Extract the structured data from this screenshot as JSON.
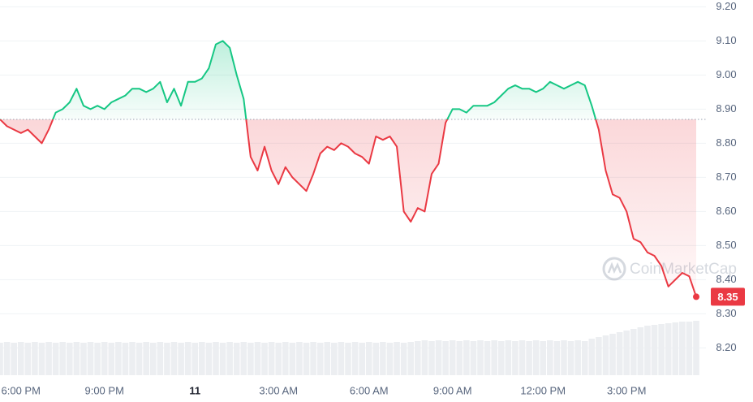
{
  "chart_data": {
    "type": "line",
    "watermark": "CoinMarketCap",
    "current_label": "8.35",
    "categories": [
      null,
      null,
      null,
      "6:00 PM",
      null,
      null,
      null,
      null,
      null,
      null,
      null,
      null,
      null,
      null,
      null,
      "9:00 PM",
      null,
      null,
      null,
      null,
      null,
      null,
      null,
      null,
      null,
      null,
      null,
      null,
      "11",
      null,
      null,
      null,
      null,
      null,
      null,
      null,
      null,
      null,
      null,
      null,
      "3:00 AM",
      null,
      null,
      null,
      null,
      null,
      null,
      null,
      null,
      null,
      null,
      null,
      null,
      "6:00 AM",
      null,
      null,
      null,
      null,
      null,
      null,
      null,
      null,
      null,
      null,
      null,
      "9:00 AM",
      null,
      null,
      null,
      null,
      null,
      null,
      null,
      null,
      null,
      null,
      null,
      null,
      "12:00 PM",
      null,
      null,
      null,
      null,
      null,
      null,
      null,
      null,
      null,
      null,
      null,
      "3:00 PM",
      null,
      null,
      null,
      null,
      null,
      null,
      null,
      null,
      null,
      null
    ],
    "values": [
      8.87,
      8.85,
      8.84,
      8.83,
      8.84,
      8.82,
      8.8,
      8.84,
      8.89,
      8.9,
      8.92,
      8.96,
      8.91,
      8.9,
      8.91,
      8.9,
      8.92,
      8.93,
      8.94,
      8.96,
      8.96,
      8.95,
      8.96,
      8.98,
      8.92,
      8.96,
      8.91,
      8.98,
      8.98,
      8.99,
      9.02,
      9.09,
      9.1,
      9.08,
      9.0,
      8.93,
      8.76,
      8.72,
      8.79,
      8.72,
      8.68,
      8.73,
      8.7,
      8.68,
      8.66,
      8.71,
      8.77,
      8.79,
      8.78,
      8.8,
      8.79,
      8.77,
      8.76,
      8.74,
      8.82,
      8.81,
      8.82,
      8.79,
      8.6,
      8.57,
      8.61,
      8.6,
      8.71,
      8.74,
      8.86,
      8.9,
      8.9,
      8.89,
      8.91,
      8.91,
      8.91,
      8.92,
      8.94,
      8.96,
      8.97,
      8.96,
      8.96,
      8.95,
      8.96,
      8.98,
      8.97,
      8.96,
      8.97,
      8.98,
      8.97,
      8.91,
      8.84,
      8.72,
      8.65,
      8.64,
      8.6,
      8.52,
      8.51,
      8.48,
      8.47,
      8.44,
      8.38,
      8.4,
      8.42,
      8.41,
      8.35
    ],
    "volume": [
      40,
      41,
      40,
      41,
      40,
      41,
      40,
      41,
      40,
      41,
      40,
      41,
      40,
      41,
      40,
      41,
      40,
      41,
      40,
      41,
      40,
      41,
      40,
      41,
      40,
      41,
      40,
      41,
      40,
      41,
      40,
      41,
      40,
      41,
      40,
      41,
      40,
      41,
      40,
      41,
      40,
      41,
      40,
      41,
      40,
      41,
      40,
      41,
      40,
      41,
      40,
      41,
      40,
      41,
      40,
      41,
      40,
      41,
      40,
      41,
      42,
      43,
      42,
      43,
      42,
      43,
      42,
      43,
      42,
      43,
      42,
      43,
      42,
      43,
      42,
      43,
      42,
      43,
      42,
      43,
      42,
      43,
      42,
      43,
      42,
      45,
      47,
      49,
      51,
      53,
      55,
      57,
      59,
      61,
      62,
      63,
      64,
      65,
      66,
      66,
      67
    ],
    "up_color": "#16c784",
    "down_color": "#ea3943",
    "ylim": [
      8.12,
      9.22
    ],
    "yticks": [
      {
        "value": 8.2,
        "label": "8.20"
      },
      {
        "value": 8.3,
        "label": "8.30"
      },
      {
        "value": 8.4,
        "label": "8.40"
      },
      {
        "value": 8.5,
        "label": "8.50"
      },
      {
        "value": 8.6,
        "label": "8.60"
      },
      {
        "value": 8.7,
        "label": "8.70"
      },
      {
        "value": 8.8,
        "label": "8.80"
      },
      {
        "value": 8.9,
        "label": "8.90"
      },
      {
        "value": 9.0,
        "label": "9.00"
      },
      {
        "value": 9.1,
        "label": "9.10"
      },
      {
        "value": 9.2,
        "label": "9.20"
      }
    ],
    "grid": true
  }
}
